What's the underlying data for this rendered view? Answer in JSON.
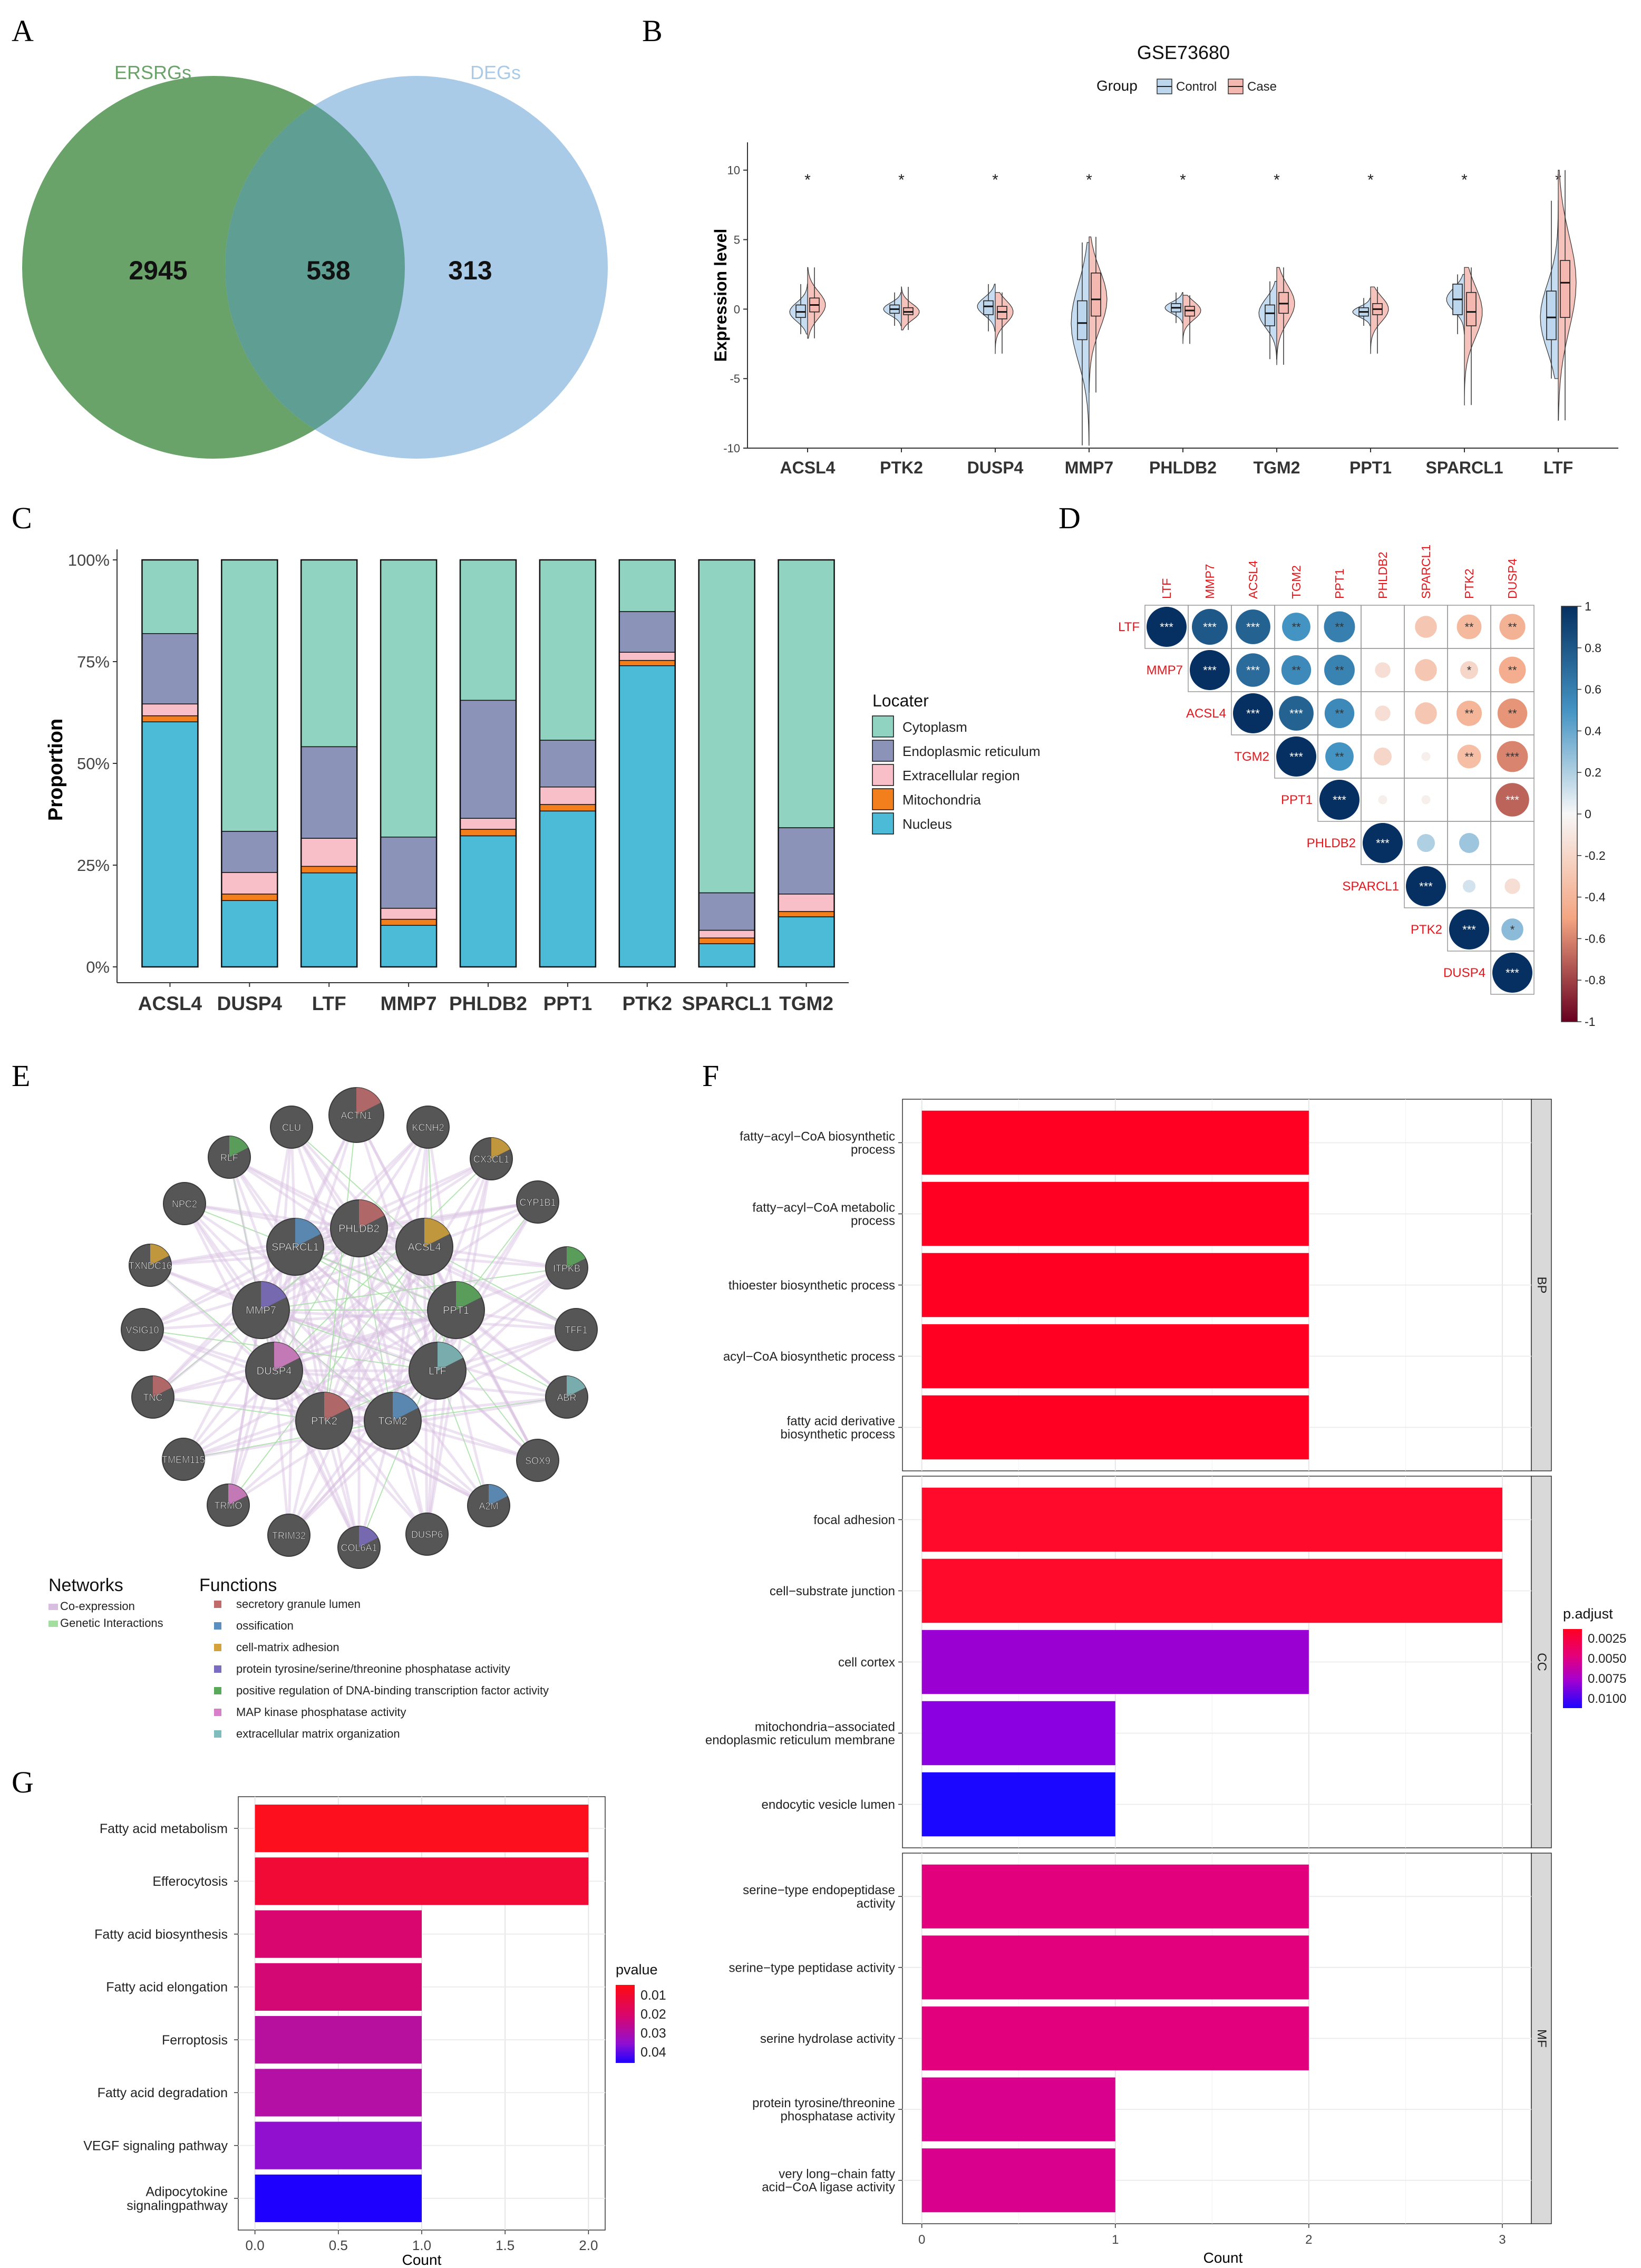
{
  "panels": {
    "A": {
      "letter": "A",
      "set_labels": [
        "ERSRGs",
        "DEGs"
      ],
      "counts": [
        "2945",
        "538",
        "313"
      ],
      "colors": {
        "left": "#6aa36a",
        "right": "#a9cbe8",
        "overlap": "#5f9e93",
        "left_label": "#6aa36a",
        "right_label": "#a9cbe8"
      }
    },
    "B": {
      "letter": "B",
      "title": "GSE73680",
      "legend_title": "Group",
      "groups": [
        "Control",
        "Case"
      ],
      "ylabel": "Expression level",
      "ylim": [
        -10,
        12
      ],
      "yticks": [
        -10,
        -5,
        0,
        5,
        10
      ],
      "genes": [
        "ACSL4",
        "PTK2",
        "DUSP4",
        "MMP7",
        "PHLDB2",
        "TGM2",
        "PPT1",
        "SPARCL1",
        "LTF"
      ],
      "signif": [
        "*",
        "*",
        "*",
        "*",
        "*",
        "*",
        "*",
        "*",
        "*"
      ],
      "colors": {
        "Control": "#bcd6ee",
        "Case": "#f4b8b0"
      },
      "stats": [
        {
          "c": {
            "med": -0.2,
            "q1": -0.6,
            "q3": 0.3,
            "lo": -1.8,
            "hi": 1.8
          },
          "k": {
            "med": 0.3,
            "q1": -0.2,
            "q3": 0.8,
            "lo": -2.1,
            "hi": 3.0
          }
        },
        {
          "c": {
            "med": 0.0,
            "q1": -0.3,
            "q3": 0.3,
            "lo": -1.2,
            "hi": 1.2
          },
          "k": {
            "med": -0.2,
            "q1": -0.4,
            "q3": 0.1,
            "lo": -1.5,
            "hi": 1.6
          }
        },
        {
          "c": {
            "med": 0.2,
            "q1": -0.4,
            "q3": 0.6,
            "lo": -1.6,
            "hi": 1.8
          },
          "k": {
            "med": -0.2,
            "q1": -0.7,
            "q3": 0.2,
            "lo": -3.2,
            "hi": 1.2
          }
        },
        {
          "c": {
            "med": -1.0,
            "q1": -2.2,
            "q3": 0.6,
            "lo": -9.8,
            "hi": 4.8
          },
          "k": {
            "med": 0.7,
            "q1": -0.5,
            "q3": 2.6,
            "lo": -6.0,
            "hi": 5.2
          }
        },
        {
          "c": {
            "med": 0.1,
            "q1": -0.2,
            "q3": 0.4,
            "lo": -1.0,
            "hi": 1.2
          },
          "k": {
            "med": -0.1,
            "q1": -0.5,
            "q3": 0.2,
            "lo": -2.5,
            "hi": 1.0
          }
        },
        {
          "c": {
            "med": -0.3,
            "q1": -1.2,
            "q3": 0.3,
            "lo": -3.6,
            "hi": 2.0
          },
          "k": {
            "med": 0.4,
            "q1": -0.3,
            "q3": 1.2,
            "lo": -4.0,
            "hi": 3.0
          }
        },
        {
          "c": {
            "med": -0.2,
            "q1": -0.5,
            "q3": 0.1,
            "lo": -1.2,
            "hi": 0.8
          },
          "k": {
            "med": 0.0,
            "q1": -0.4,
            "q3": 0.4,
            "lo": -3.2,
            "hi": 1.6
          }
        },
        {
          "c": {
            "med": 0.7,
            "q1": -0.4,
            "q3": 1.8,
            "lo": -1.8,
            "hi": 2.5
          },
          "k": {
            "med": -0.2,
            "q1": -1.2,
            "q3": 1.2,
            "lo": -6.9,
            "hi": 3.0
          }
        },
        {
          "c": {
            "med": -0.6,
            "q1": -2.2,
            "q3": 1.3,
            "lo": -5.0,
            "hi": 7.8
          },
          "k": {
            "med": 1.9,
            "q1": -0.6,
            "q3": 3.5,
            "lo": -8.0,
            "hi": 10.0
          }
        }
      ]
    },
    "C": {
      "letter": "C",
      "chart_data": {
        "type": "bar",
        "stacked": true,
        "categories": [
          "ACSL4",
          "DUSP4",
          "LTF",
          "MMP7",
          "PHLDB2",
          "PPT1",
          "PTK2",
          "SPARCL1",
          "TGM2"
        ],
        "ylabel": "Proportion",
        "yticks": [
          "0%",
          "25%",
          "50%",
          "75%",
          "100%"
        ],
        "legend_title": "Locater",
        "series": [
          {
            "name": "Nucleus",
            "color": "#4bbbd8",
            "values": [
              60.2,
              16.3,
              23.1,
              10.2,
              32.2,
              38.3,
              74.0,
              5.7,
              12.3
            ]
          },
          {
            "name": "Mitochondria",
            "color": "#f37e1c",
            "values": [
              1.5,
              1.6,
              1.6,
              1.5,
              1.6,
              1.6,
              1.3,
              1.4,
              1.3
            ]
          },
          {
            "name": "Extracellular region",
            "color": "#f8bfc8",
            "values": [
              2.9,
              5.3,
              6.9,
              2.7,
              2.7,
              4.3,
              2.0,
              1.9,
              4.3
            ]
          },
          {
            "name": "Endoplasmic reticulum",
            "color": "#8b93b9",
            "values": [
              17.3,
              10.1,
              22.5,
              17.5,
              29.0,
              11.5,
              10.0,
              9.2,
              16.3
            ]
          },
          {
            "name": "Cytoplasm",
            "color": "#90d3c1",
            "values": [
              18.1,
              66.7,
              45.9,
              68.1,
              34.5,
              44.3,
              12.7,
              81.8,
              65.8
            ]
          }
        ]
      }
    },
    "D": {
      "letter": "D",
      "genes": [
        "LTF",
        "MMP7",
        "ACSL4",
        "TGM2",
        "PPT1",
        "PHLDB2",
        "SPARCL1",
        "PTK2",
        "DUSP4"
      ],
      "colorbar_ticks": [
        "1",
        "0.8",
        "0.6",
        "0.4",
        "0.2",
        "0",
        "-0.2",
        "-0.4",
        "-0.6",
        "-0.8",
        "-1"
      ],
      "label_color": "#e8151b",
      "cells": [
        [
          1.0,
          0.8,
          0.75,
          0.5,
          0.6,
          null,
          -0.3,
          -0.38,
          -0.42
        ],
        [
          null,
          1.0,
          0.7,
          0.55,
          0.58,
          -0.15,
          -0.3,
          -0.2,
          -0.45
        ],
        [
          null,
          null,
          1.0,
          0.75,
          0.55,
          -0.15,
          -0.3,
          -0.4,
          -0.55
        ],
        [
          null,
          null,
          null,
          1.0,
          0.5,
          -0.2,
          -0.05,
          -0.35,
          -0.6
        ],
        [
          null,
          null,
          null,
          null,
          1.0,
          -0.05,
          -0.05,
          null,
          -0.7
        ],
        [
          null,
          null,
          null,
          null,
          null,
          1.0,
          0.2,
          0.25,
          null
        ],
        [
          null,
          null,
          null,
          null,
          null,
          null,
          1.0,
          0.1,
          -0.15
        ],
        [
          null,
          null,
          null,
          null,
          null,
          null,
          null,
          1.0,
          0.3
        ],
        [
          null,
          null,
          null,
          null,
          null,
          null,
          null,
          null,
          1.0
        ]
      ],
      "stars": [
        [
          "***",
          "***",
          "***",
          "**",
          "**",
          "",
          "",
          "**",
          "**"
        ],
        [
          "",
          "***",
          "***",
          "**",
          "**",
          "",
          "",
          "*",
          "**"
        ],
        [
          "",
          "",
          "***",
          "***",
          "**",
          "",
          "",
          "**",
          "**"
        ],
        [
          "",
          "",
          "",
          "***",
          "**",
          "",
          "",
          "**",
          "***"
        ],
        [
          "",
          "",
          "",
          "",
          "***",
          "",
          "",
          "",
          "***"
        ],
        [
          "",
          "",
          "",
          "",
          "",
          "***",
          "",
          "",
          ""
        ],
        [
          "",
          "",
          "",
          "",
          "",
          "",
          "***",
          "",
          ""
        ],
        [
          "",
          "",
          "",
          "",
          "",
          "",
          "",
          "***",
          "*"
        ],
        [
          "",
          "",
          "",
          "",
          "",
          "",
          "",
          "",
          "***"
        ]
      ]
    },
    "E": {
      "letter": "E",
      "nodes_outer": [
        "ACTN1",
        "KCNH2",
        "CX3CL1",
        "CYP1B1",
        "ITPKB",
        "TFF1",
        "ABR",
        "SOX9",
        "A2M",
        "DUSP6",
        "COL6A1",
        "TRIM32",
        "TRMO",
        "TMEM115",
        "TNC",
        "VSIG10",
        "TXNDC16",
        "NPC2",
        "RLF",
        "CLU"
      ],
      "nodes_inner": [
        "PHLDB2",
        "SPARCL1",
        "ACSL4",
        "MMP7",
        "PPT1",
        "DUSP4",
        "LTF",
        "PTK2",
        "TGM2"
      ],
      "networks_title": "Networks",
      "networks": [
        {
          "label": "Co-expression",
          "color": "#d8bfe0"
        },
        {
          "label": "Genetic Interactions",
          "color": "#a3dea0"
        }
      ],
      "functions_title": "Functions",
      "functions": [
        {
          "label": "secretory granule lumen",
          "color": "#c06a6a"
        },
        {
          "label": "ossification",
          "color": "#5a8fbf"
        },
        {
          "label": "cell-matrix adhesion",
          "color": "#d3a23a"
        },
        {
          "label": "protein tyrosine/serine/threonine phosphatase activity",
          "color": "#7b6cc0"
        },
        {
          "label": "positive regulation of DNA-binding transcription factor activity",
          "color": "#5aa85a"
        },
        {
          "label": "MAP kinase phosphatase activity",
          "color": "#d77fc8"
        },
        {
          "label": "extracellular matrix organization",
          "color": "#7fbcbc"
        }
      ]
    },
    "F": {
      "letter": "F",
      "chart_data": {
        "type": "bar",
        "orientation": "horizontal",
        "xlabel": "Count",
        "xticks": [
          0,
          1,
          2,
          3
        ],
        "legend_title": "p.adjust",
        "legend_ticks": [
          "0.0025",
          "0.0050",
          "0.0075",
          "0.0100"
        ],
        "facets": [
          {
            "name": "BP",
            "bars": [
              {
                "label": [
                  "fatty−acyl−CoA biosynthetic",
                  "process"
                ],
                "value": 2,
                "color": "#ff0022"
              },
              {
                "label": [
                  "fatty−acyl−CoA metabolic",
                  "process"
                ],
                "value": 2,
                "color": "#ff0022"
              },
              {
                "label": [
                  "thioester biosynthetic process"
                ],
                "value": 2,
                "color": "#ff0022"
              },
              {
                "label": [
                  "acyl−CoA biosynthetic process"
                ],
                "value": 2,
                "color": "#ff0022"
              },
              {
                "label": [
                  "fatty acid derivative",
                  "biosynthetic process"
                ],
                "value": 2,
                "color": "#ff0022"
              }
            ]
          },
          {
            "name": "CC",
            "bars": [
              {
                "label": [
                  "focal adhesion"
                ],
                "value": 3,
                "color": "#ff0a2a"
              },
              {
                "label": [
                  "cell−substrate junction"
                ],
                "value": 3,
                "color": "#ff0a2a"
              },
              {
                "label": [
                  "cell cortex"
                ],
                "value": 2,
                "color": "#9b00d3"
              },
              {
                "label": [
                  "mitochondria−associated",
                  "endoplasmic reticulum membrane"
                ],
                "value": 1,
                "color": "#8a00e0"
              },
              {
                "label": [
                  "endocytic vesicle lumen"
                ],
                "value": 1,
                "color": "#1b06ff"
              }
            ]
          },
          {
            "name": "MF",
            "bars": [
              {
                "label": [
                  "serine−type endopeptidase",
                  "activity"
                ],
                "value": 2,
                "color": "#e3007c"
              },
              {
                "label": [
                  "serine−type peptidase activity"
                ],
                "value": 2,
                "color": "#e3007c"
              },
              {
                "label": [
                  "serine hydrolase activity"
                ],
                "value": 2,
                "color": "#e3007c"
              },
              {
                "label": [
                  "protein tyrosine/threonine",
                  "phosphatase activity"
                ],
                "value": 1,
                "color": "#d8008c"
              },
              {
                "label": [
                  "very long−chain fatty",
                  "acid−CoA ligase activity"
                ],
                "value": 1,
                "color": "#d8008c"
              }
            ]
          }
        ]
      }
    },
    "G": {
      "letter": "G",
      "chart_data": {
        "type": "bar",
        "orientation": "horizontal",
        "xlabel": "Count",
        "xticks": [
          "0.0",
          "0.5",
          "1.0",
          "1.5",
          "2.0"
        ],
        "xlim": [
          0,
          2.08
        ],
        "legend_title": "pvalue",
        "legend_ticks": [
          "0.01",
          "0.02",
          "0.03",
          "0.04"
        ],
        "bars": [
          {
            "label": [
              "Fatty acid metabolism"
            ],
            "value": 2,
            "color": "#fe0f1e"
          },
          {
            "label": [
              "Efferocytosis"
            ],
            "value": 2,
            "color": "#f20a36"
          },
          {
            "label": [
              "Fatty acid biosynthesis"
            ],
            "value": 1,
            "color": "#d8066e"
          },
          {
            "label": [
              "Fatty acid elongation"
            ],
            "value": 1,
            "color": "#d40874"
          },
          {
            "label": [
              "Ferroptosis"
            ],
            "value": 1,
            "color": "#b8109e"
          },
          {
            "label": [
              "Fatty acid degradation"
            ],
            "value": 1,
            "color": "#b410a6"
          },
          {
            "label": [
              "VEGF signaling pathway"
            ],
            "value": 1,
            "color": "#9110d0"
          },
          {
            "label": [
              "Adipocytokine",
              "signalingpathway"
            ],
            "value": 1,
            "color": "#1e00ff"
          }
        ]
      }
    }
  }
}
